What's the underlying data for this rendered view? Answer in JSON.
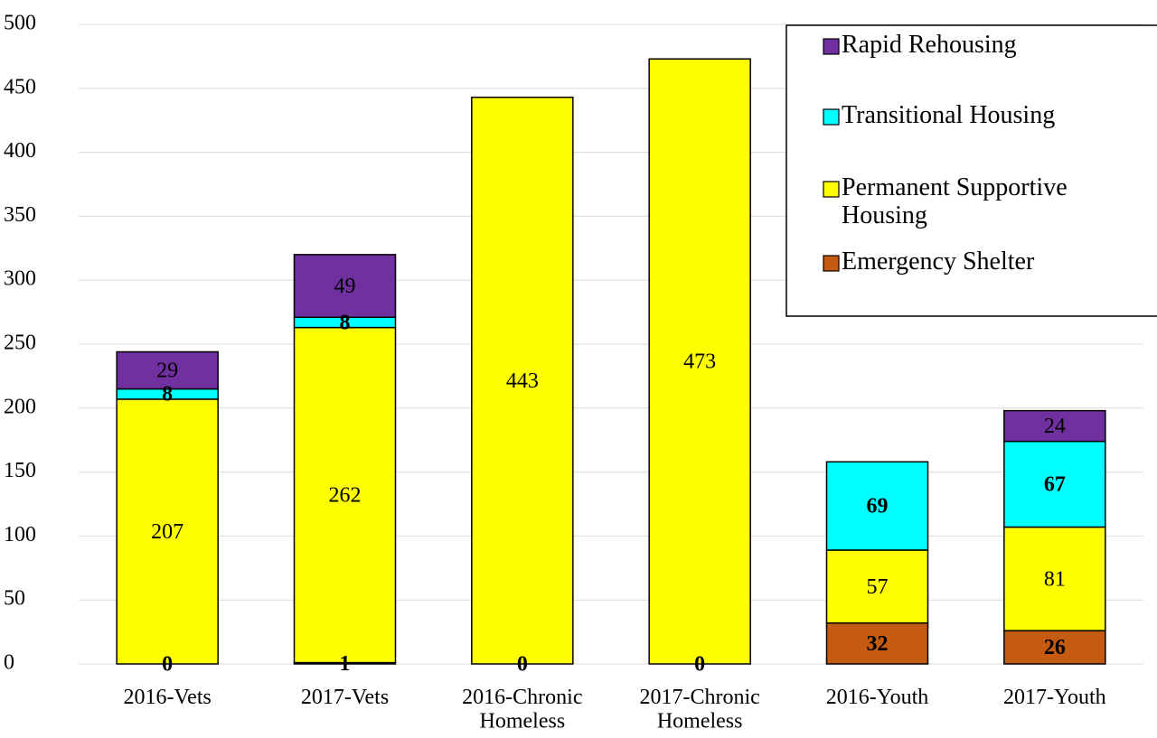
{
  "chart_data": {
    "type": "stacked_bar",
    "categories": [
      "2016-Vets",
      "2017-Vets",
      "2016-Chronic Homeless",
      "2017-Chronic Homeless",
      "2016-Youth",
      "2017-Youth"
    ],
    "series": [
      {
        "name": "Emergency Shelter",
        "color": "#c55a11",
        "label_color": "#000000",
        "label_bold": true,
        "values": [
          0,
          1,
          0,
          0,
          32,
          26
        ]
      },
      {
        "name": "Permanent Supportive Housing",
        "color": "#ffff00",
        "label_color": "#000000",
        "label_bold": false,
        "values": [
          207,
          262,
          443,
          473,
          57,
          81
        ]
      },
      {
        "name": "Transitional Housing",
        "color": "#00ffff",
        "label_color": "#000000",
        "label_bold": true,
        "values": [
          8,
          8,
          null,
          null,
          69,
          67
        ]
      },
      {
        "name": "Rapid Rehousing",
        "color": "#7030a0",
        "label_color": "#ffffff",
        "label_bold": false,
        "values": [
          29,
          49,
          null,
          null,
          null,
          24
        ]
      }
    ],
    "ylim": [
      0,
      500
    ],
    "yticks": [
      0,
      50,
      100,
      150,
      200,
      250,
      300,
      350,
      400,
      450,
      500
    ],
    "grid": true,
    "legend": "upper right"
  }
}
